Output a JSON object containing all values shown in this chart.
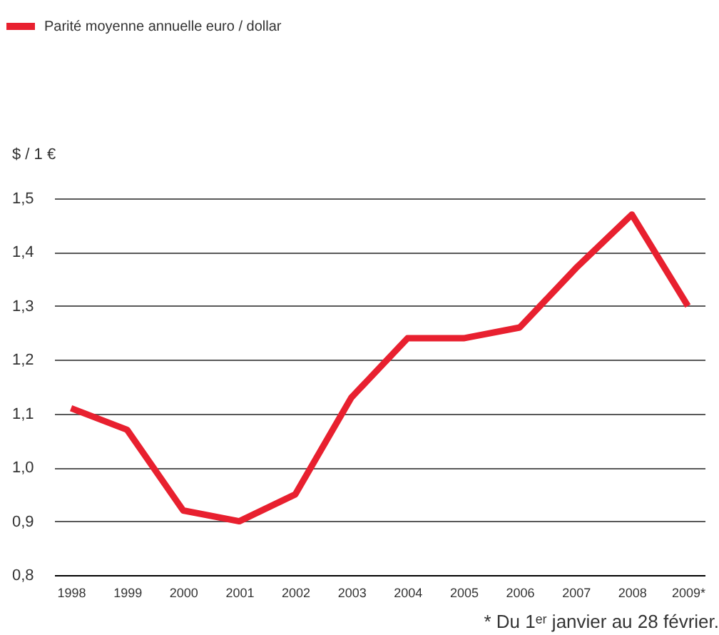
{
  "chart_data": {
    "type": "line",
    "ylabel": "$ / 1 €",
    "categories": [
      "1998",
      "1999",
      "2000",
      "2001",
      "2002",
      "2003",
      "2004",
      "2005",
      "2006",
      "2007",
      "2008",
      "2009*"
    ],
    "series": [
      {
        "name": "Parité moyenne annuelle euro / dollar",
        "color": "#e8202f",
        "values": [
          1.11,
          1.07,
          0.92,
          0.9,
          0.95,
          1.13,
          1.24,
          1.24,
          1.26,
          1.37,
          1.47,
          1.3
        ]
      }
    ],
    "ylim": [
      0.8,
      1.5
    ],
    "yticks": [
      {
        "value": 0.8,
        "label": "0,8"
      },
      {
        "value": 0.9,
        "label": "0,9"
      },
      {
        "value": 1.0,
        "label": "1,0"
      },
      {
        "value": 1.1,
        "label": "1,1"
      },
      {
        "value": 1.2,
        "label": "1,2"
      },
      {
        "value": 1.3,
        "label": "1,3"
      },
      {
        "value": 1.4,
        "label": "1,4"
      },
      {
        "value": 1.5,
        "label": "1,5"
      }
    ],
    "grid": "y",
    "legend": "top left",
    "marker": "none",
    "line_style": "solid",
    "annotations": [
      "* Du 1ᵉʳ janvier au 28 février."
    ]
  }
}
